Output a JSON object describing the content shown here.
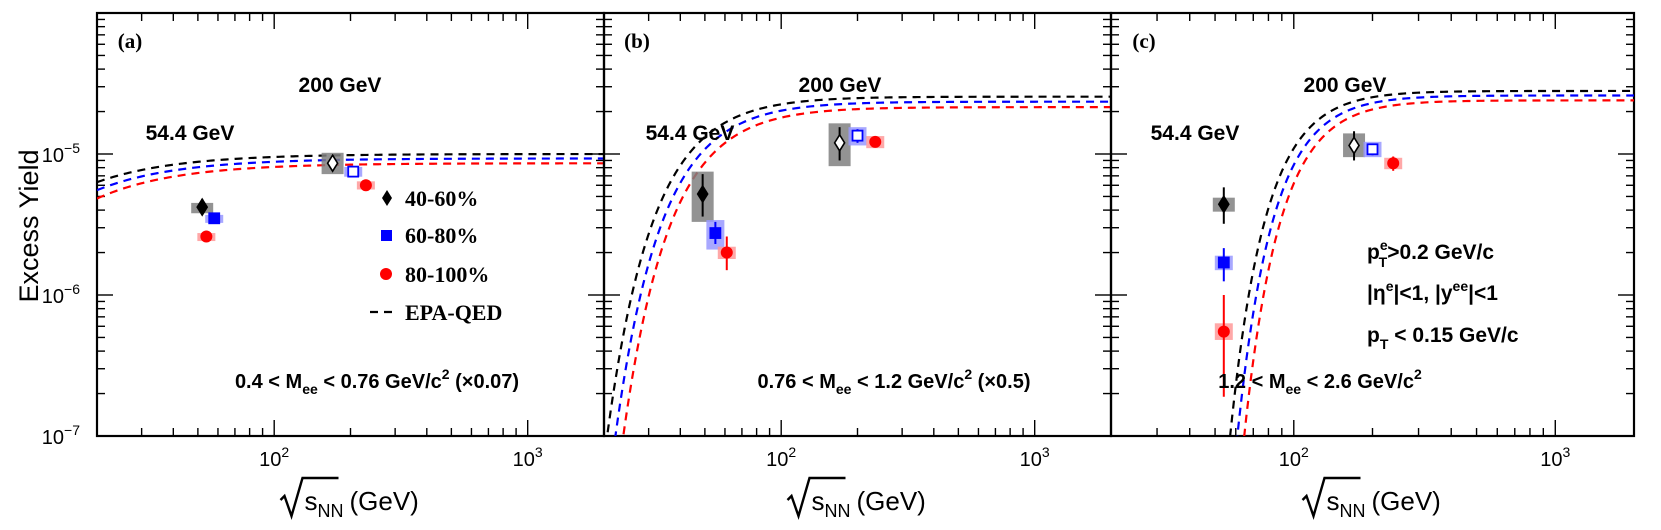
{
  "figure": {
    "y_axis_label": "Excess Yield",
    "x_axis_label_main": "s",
    "x_axis_label_sub": "NN",
    "x_axis_label_unit": "(GeV)",
    "y_tick_labels": [
      {
        "value": 1e-05,
        "base": "10",
        "exp": "−5"
      },
      {
        "value": 1e-06,
        "base": "10",
        "exp": "−6"
      },
      {
        "value": 1e-07,
        "base": "10",
        "exp": "−7"
      }
    ],
    "x_tick_labels": [
      {
        "value": 100,
        "base": "10",
        "exp": "2"
      },
      {
        "value": 1000,
        "base": "10",
        "exp": "3"
      }
    ],
    "energy_label_54": "54.4 GeV",
    "energy_label_200": "200 GeV",
    "colors": {
      "c40": "#000000",
      "c60": "#0000ff",
      "c80": "#ff0000",
      "box40": "#808080",
      "box60": "#9999ff",
      "box80": "#ff9999"
    }
  },
  "legend": {
    "entries": [
      {
        "label": "40-60%",
        "marker": "diamond",
        "color": "#000000"
      },
      {
        "label": "60-80%",
        "marker": "square",
        "color": "#0000ff"
      },
      {
        "label": "80-100%",
        "marker": "circle",
        "color": "#ff0000"
      },
      {
        "label": "EPA-QED",
        "marker": "dashed-line",
        "color": "#000000"
      }
    ]
  },
  "cuts": {
    "pt_e_main": "p",
    "pt_e_sup": "e",
    "pt_e_sub": "T",
    "pt_e_rest": ">0.2 GeV/c",
    "eta_pre": "|η",
    "eta_sup": "e",
    "eta_mid": "|<1, |y",
    "y_sup": "ee",
    "eta_post": "|<1",
    "pt_pair_main": "p",
    "pt_pair_sub": "T",
    "pt_pair_rest": " < 0.15 GeV/c"
  },
  "chart_data": [
    {
      "type": "scatter",
      "panel_label": "(a)",
      "mass_pre": "0.4 < M",
      "mass_sub": "ee",
      "mass_mid": " < 0.76 GeV/c",
      "mass_sup": "2",
      "mass_post": " (×0.07)",
      "xscale": "log",
      "yscale": "log",
      "xlim": [
        20,
        2000
      ],
      "ylim": [
        1e-07,
        0.0001
      ],
      "series": [
        {
          "name": "40-60%",
          "color": "#000000",
          "points": [
            {
              "x": 52,
              "y": 4.2e-06,
              "err_lo": 3.7e-06,
              "err_hi": 4.8e-06,
              "sys_lo": 3.8e-06,
              "sys_hi": 4.5e-06,
              "filled": true
            },
            {
              "x": 170,
              "y": 8.6e-06,
              "err_lo": 7.6e-06,
              "err_hi": 9.8e-06,
              "sys_lo": 7.2e-06,
              "sys_hi": 1.02e-05,
              "filled": false
            }
          ]
        },
        {
          "name": "60-80%",
          "color": "#0000ff",
          "points": [
            {
              "x": 58,
              "y": 3.5e-06,
              "err_lo": 3.2e-06,
              "err_hi": 3.8e-06,
              "sys_lo": 3.3e-06,
              "sys_hi": 3.7e-06,
              "filled": true
            },
            {
              "x": 205,
              "y": 7.5e-06,
              "err_lo": 7e-06,
              "err_hi": 8e-06,
              "sys_lo": 6.9e-06,
              "sys_hi": 8.1e-06,
              "filled": false
            }
          ]
        },
        {
          "name": "80-100%",
          "color": "#ff0000",
          "points": [
            {
              "x": 54,
              "y": 2.6e-06,
              "err_lo": 2.45e-06,
              "err_hi": 2.75e-06,
              "sys_lo": 2.45e-06,
              "sys_hi": 2.75e-06,
              "filled": true
            },
            {
              "x": 230,
              "y": 6e-06,
              "err_lo": 5.7e-06,
              "err_hi": 6.3e-06,
              "sys_lo": 5.6e-06,
              "sys_hi": 6.4e-06,
              "filled": true
            }
          ]
        }
      ],
      "epa_curves": [
        {
          "name": "40-60%",
          "color": "#000000",
          "plateau": 1e-05,
          "x0": 11.5,
          "p": 1.4
        },
        {
          "name": "60-80%",
          "color": "#0000ff",
          "plateau": 9.3e-06,
          "x0": 12.5,
          "p": 1.4
        },
        {
          "name": "80-100%",
          "color": "#ff0000",
          "plateau": 8.6e-06,
          "x0": 13.5,
          "p": 1.4
        }
      ]
    },
    {
      "type": "scatter",
      "panel_label": "(b)",
      "mass_pre": "0.76 < M",
      "mass_sub": "ee",
      "mass_mid": " < 1.2 GeV/c",
      "mass_sup": "2",
      "mass_post": " (×0.5)",
      "xscale": "log",
      "yscale": "log",
      "xlim": [
        20,
        2000
      ],
      "ylim": [
        1e-07,
        0.0001
      ],
      "series": [
        {
          "name": "40-60%",
          "color": "#000000",
          "points": [
            {
              "x": 49,
              "y": 5.2e-06,
              "err_lo": 3.6e-06,
              "err_hi": 7.2e-06,
              "sys_lo": 3.3e-06,
              "sys_hi": 7.5e-06,
              "filled": true
            },
            {
              "x": 170,
              "y": 1.2e-05,
              "err_lo": 9e-06,
              "err_hi": 1.55e-05,
              "sys_lo": 8.2e-06,
              "sys_hi": 1.65e-05,
              "filled": false
            }
          ]
        },
        {
          "name": "60-80%",
          "color": "#0000ff",
          "points": [
            {
              "x": 55,
              "y": 2.75e-06,
              "err_lo": 2.3e-06,
              "err_hi": 3.3e-06,
              "sys_lo": 2.1e-06,
              "sys_hi": 3.4e-06,
              "filled": true
            },
            {
              "x": 200,
              "y": 1.35e-05,
              "err_lo": 1.2e-05,
              "err_hi": 1.5e-05,
              "sys_lo": 1.15e-05,
              "sys_hi": 1.55e-05,
              "filled": false
            }
          ]
        },
        {
          "name": "80-100%",
          "color": "#ff0000",
          "points": [
            {
              "x": 61,
              "y": 2e-06,
              "err_lo": 1.5e-06,
              "err_hi": 2.6e-06,
              "sys_lo": 1.8e-06,
              "sys_hi": 2.2e-06,
              "filled": true
            },
            {
              "x": 235,
              "y": 1.22e-05,
              "err_lo": 1.14e-05,
              "err_hi": 1.3e-05,
              "sys_lo": 1.1e-05,
              "sys_hi": 1.34e-05,
              "filled": true
            }
          ]
        }
      ],
      "epa_curves": [
        {
          "name": "40-60%",
          "color": "#000000",
          "plateau": 2.55e-05,
          "x0": 42,
          "p": 2.4
        },
        {
          "name": "60-80%",
          "color": "#0000ff",
          "plateau": 2.35e-05,
          "x0": 45,
          "p": 2.4
        },
        {
          "name": "80-100%",
          "color": "#ff0000",
          "plateau": 2.15e-05,
          "x0": 48,
          "p": 2.4
        }
      ]
    },
    {
      "type": "scatter",
      "panel_label": "(c)",
      "mass_pre": "1.2 < M",
      "mass_sub": "ee",
      "mass_mid": " < 2.6 GeV/c",
      "mass_sup": "2",
      "mass_post": "",
      "xscale": "log",
      "yscale": "log",
      "xlim": [
        20,
        2000
      ],
      "ylim": [
        1e-07,
        0.0001
      ],
      "series": [
        {
          "name": "40-60%",
          "color": "#000000",
          "points": [
            {
              "x": 54,
              "y": 4.4e-06,
              "err_lo": 3.2e-06,
              "err_hi": 5.8e-06,
              "sys_lo": 3.9e-06,
              "sys_hi": 4.9e-06,
              "filled": true
            },
            {
              "x": 170,
              "y": 1.15e-05,
              "err_lo": 9e-06,
              "err_hi": 1.45e-05,
              "sys_lo": 9.5e-06,
              "sys_hi": 1.4e-05,
              "filled": false
            }
          ]
        },
        {
          "name": "60-80%",
          "color": "#0000ff",
          "points": [
            {
              "x": 54,
              "y": 1.7e-06,
              "err_lo": 1.25e-06,
              "err_hi": 2.15e-06,
              "sys_lo": 1.5e-06,
              "sys_hi": 1.9e-06,
              "filled": true
            },
            {
              "x": 200,
              "y": 1.08e-05,
              "err_lo": 9.8e-06,
              "err_hi": 1.18e-05,
              "sys_lo": 9.5e-06,
              "sys_hi": 1.22e-05,
              "filled": false
            }
          ]
        },
        {
          "name": "80-100%",
          "color": "#ff0000",
          "points": [
            {
              "x": 54,
              "y": 5.5e-07,
              "err_lo": 1.9e-07,
              "err_hi": 1e-06,
              "sys_lo": 4.8e-07,
              "sys_hi": 6.3e-07,
              "filled": true
            },
            {
              "x": 240,
              "y": 8.6e-06,
              "err_lo": 7.6e-06,
              "err_hi": 9.6e-06,
              "sys_lo": 7.8e-06,
              "sys_hi": 9.4e-06,
              "filled": true
            }
          ]
        }
      ],
      "epa_curves": [
        {
          "name": "40-60%",
          "color": "#000000",
          "plateau": 2.8e-05,
          "x0": 98,
          "p": 3.2
        },
        {
          "name": "60-80%",
          "color": "#0000ff",
          "plateau": 2.6e-05,
          "x0": 104,
          "p": 3.2
        },
        {
          "name": "80-100%",
          "color": "#ff0000",
          "plateau": 2.4e-05,
          "x0": 110,
          "p": 3.2
        }
      ]
    }
  ]
}
